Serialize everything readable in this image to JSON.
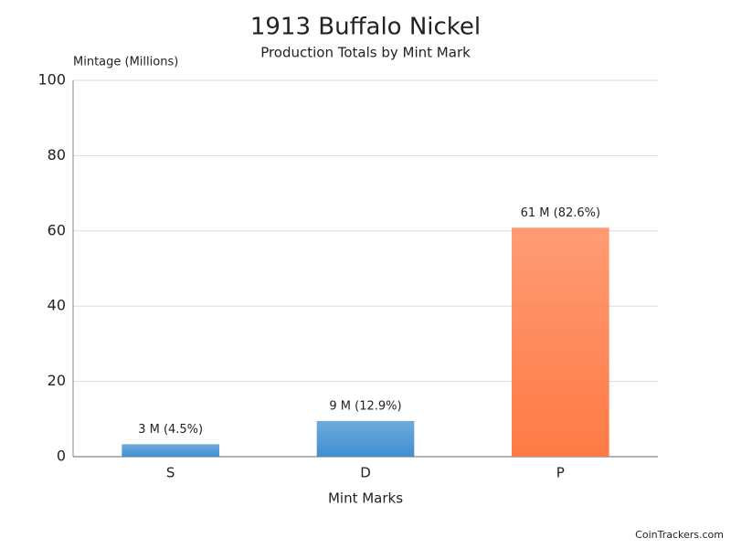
{
  "chart_data": {
    "type": "bar",
    "title": "1913 Buffalo Nickel",
    "subtitle": "Production Totals by Mint Mark",
    "y_label": "Mintage (Millions)",
    "x_label": "Mint Marks",
    "source": "CoinTrackers.com",
    "categories": [
      "S",
      "D",
      "P"
    ],
    "values": [
      3.314,
      9.493,
      60.851
    ],
    "value_labels": [
      "3 M (4.5%)",
      "9 M (12.9%)",
      "61 M (82.6%)"
    ],
    "colors": [
      "#3f8fd0",
      "#3f8fd0",
      "#ff7a45"
    ],
    "ylim": [
      0,
      100
    ],
    "yticks": [
      0,
      20,
      40,
      60,
      80,
      100
    ],
    "grid": true
  }
}
